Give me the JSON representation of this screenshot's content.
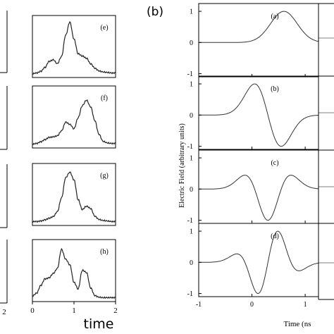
{
  "chart_data": [
    {
      "type": "line",
      "panel_group": "left",
      "xlabel": "time",
      "xticks": [
        "0",
        "1",
        "2"
      ],
      "xlim": [
        0,
        2
      ],
      "panels": [
        {
          "label": "(e)",
          "x": [
            0,
            0.1,
            0.2,
            0.3,
            0.4,
            0.5,
            0.6,
            0.7,
            0.8,
            0.9,
            1.0,
            1.1,
            1.2,
            1.3,
            1.4,
            1.5,
            1.6,
            1.7,
            1.8,
            1.9,
            2.0
          ],
          "y": [
            0.02,
            0.03,
            0.06,
            0.13,
            0.24,
            0.27,
            0.2,
            0.33,
            0.72,
            0.96,
            0.65,
            0.38,
            0.34,
            0.3,
            0.2,
            0.12,
            0.07,
            0.05,
            0.04,
            0.03,
            0.03
          ]
        },
        {
          "label": "(f)",
          "x": [
            0,
            0.1,
            0.2,
            0.3,
            0.4,
            0.5,
            0.6,
            0.7,
            0.8,
            0.9,
            1.0,
            1.1,
            1.2,
            1.3,
            1.4,
            1.5,
            1.6,
            1.7,
            1.8,
            1.9,
            2.0
          ],
          "y": [
            0.02,
            0.03,
            0.06,
            0.1,
            0.14,
            0.15,
            0.17,
            0.26,
            0.42,
            0.38,
            0.3,
            0.5,
            0.72,
            0.82,
            0.7,
            0.45,
            0.2,
            0.07,
            0.04,
            0.03,
            0.03
          ]
        },
        {
          "label": "(g)",
          "x": [
            0,
            0.1,
            0.2,
            0.3,
            0.4,
            0.5,
            0.6,
            0.7,
            0.8,
            0.9,
            1.0,
            1.1,
            1.2,
            1.3,
            1.4,
            1.5,
            1.6,
            1.7,
            1.8,
            1.9,
            2.0
          ],
          "y": [
            0.02,
            0.02,
            0.03,
            0.05,
            0.08,
            0.11,
            0.2,
            0.45,
            0.82,
            0.92,
            0.78,
            0.42,
            0.24,
            0.3,
            0.26,
            0.12,
            0.06,
            0.04,
            0.03,
            0.02,
            0.02
          ]
        },
        {
          "label": "(h)",
          "x": [
            0,
            0.1,
            0.2,
            0.3,
            0.4,
            0.5,
            0.6,
            0.7,
            0.8,
            0.9,
            1.0,
            1.1,
            1.2,
            1.3,
            1.4,
            1.5,
            1.6,
            1.7,
            1.8,
            1.9,
            2.0
          ],
          "y": [
            0.05,
            0.1,
            0.24,
            0.36,
            0.38,
            0.46,
            0.55,
            0.9,
            0.72,
            0.62,
            0.3,
            0.18,
            0.52,
            0.48,
            0.2,
            0.06,
            0.03,
            0.02,
            0.02,
            0.02,
            0.02
          ]
        }
      ]
    },
    {
      "type": "line",
      "panel_group": "right",
      "group_label": "(b)",
      "xlabel": "Time (ns",
      "ylabel": "Electric Field (arbitrary units)",
      "xticks": [
        "-1",
        "0",
        "1"
      ],
      "yticks": [
        "-1",
        "0",
        "1"
      ],
      "xlim": [
        -1,
        1.25
      ],
      "ylim": [
        -1.1,
        1.25
      ],
      "panels": [
        {
          "label": "(a)",
          "derivative_order": 0,
          "sigma": 0.25,
          "center": 0.6
        },
        {
          "label": "(b)",
          "derivative_order": 1,
          "sigma": 0.25,
          "center": 0.3
        },
        {
          "label": "(c)",
          "derivative_order": 2,
          "sigma": 0.25,
          "center": 0.3
        },
        {
          "label": "(d)",
          "derivative_order": 3,
          "sigma": 0.25,
          "center": 0.3
        }
      ]
    }
  ],
  "left_edge_tick_labels": [
    "2"
  ]
}
